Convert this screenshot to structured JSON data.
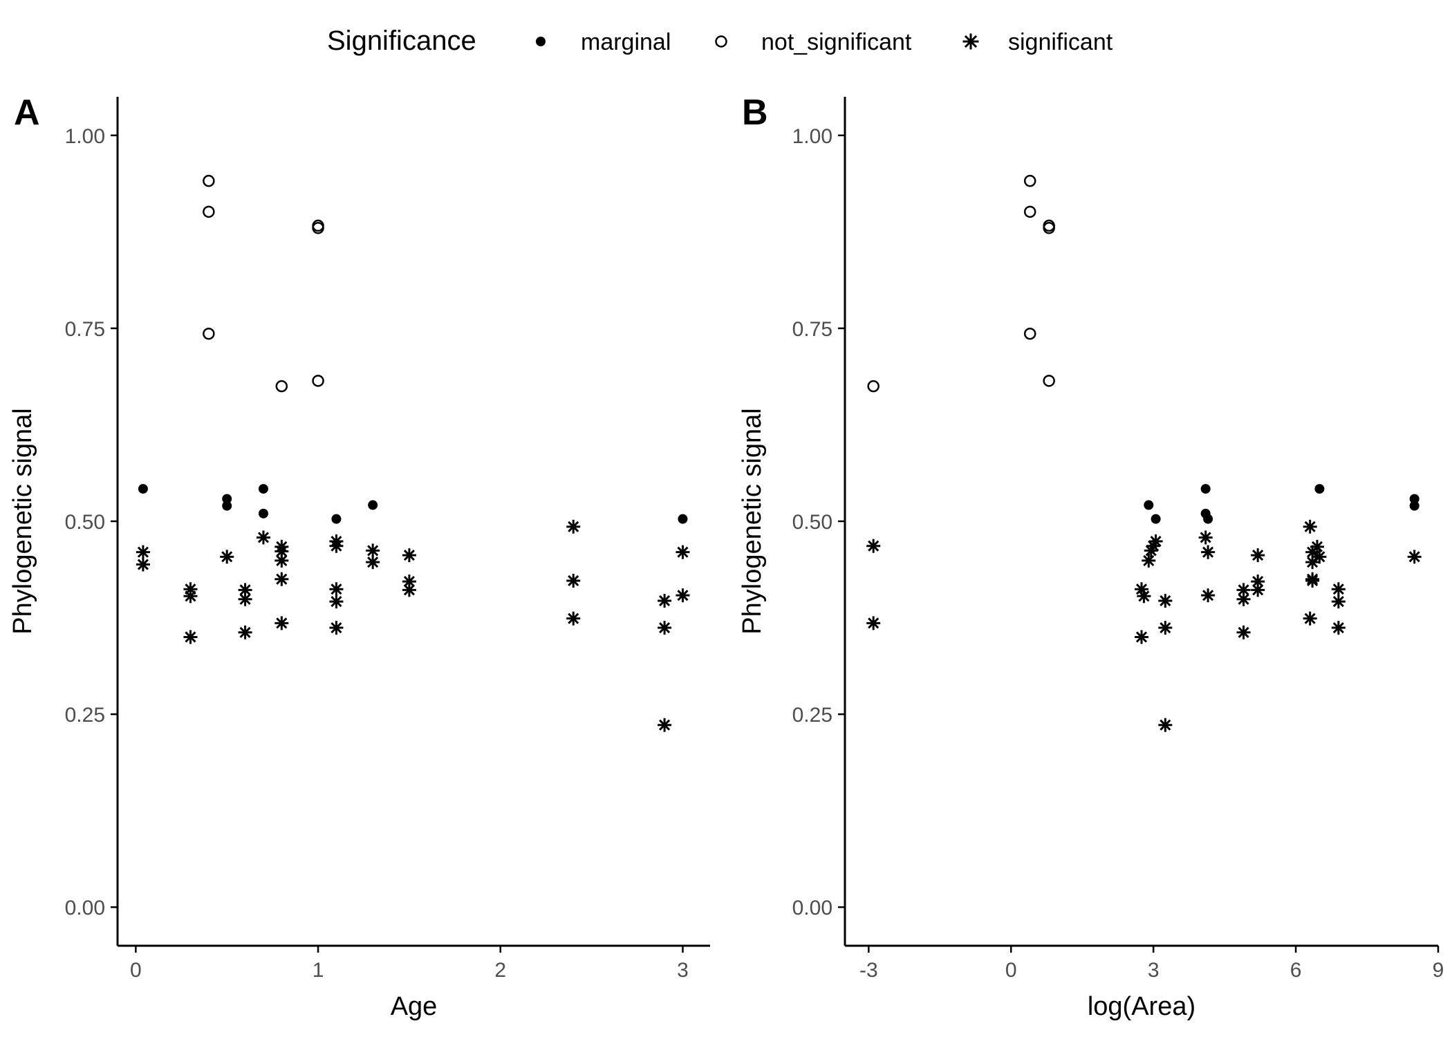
{
  "legend": {
    "title": "Significance",
    "entries": [
      {
        "label": "marginal",
        "shape": "filled-circle"
      },
      {
        "label": "not_significant",
        "shape": "open-circle"
      },
      {
        "label": "significant",
        "shape": "asterisk"
      }
    ],
    "placement": "top"
  },
  "colors": {
    "ink": "#000000",
    "tick_label": "#4d4d4d",
    "background": "#ffffff"
  },
  "chart_data": [
    {
      "type": "scatter",
      "panel_label": "A",
      "xlabel": "Age",
      "ylabel": "Phylogenetic signal",
      "xlim": [
        -0.1,
        3.15
      ],
      "ylim": [
        -0.05,
        1.05
      ],
      "x_ticks": [
        {
          "v": 0,
          "t": "0"
        },
        {
          "v": 1,
          "t": "1"
        },
        {
          "v": 2,
          "t": "2"
        },
        {
          "v": 3,
          "t": "3"
        }
      ],
      "y_ticks": [
        {
          "v": 0,
          "t": "0.00"
        },
        {
          "v": 0.25,
          "t": "0.25"
        },
        {
          "v": 0.5,
          "t": "0.50"
        },
        {
          "v": 0.75,
          "t": "0.75"
        },
        {
          "v": 1,
          "t": "1.00"
        }
      ],
      "grid": false,
      "series": [
        {
          "name": "marginal",
          "points": [
            [
              0.04,
              0.542
            ],
            [
              0.5,
              0.529
            ],
            [
              0.5,
              0.52
            ],
            [
              0.7,
              0.542
            ],
            [
              0.7,
              0.51
            ],
            [
              1.1,
              0.503
            ],
            [
              1.3,
              0.521
            ],
            [
              3.0,
              0.503
            ]
          ]
        },
        {
          "name": "not_significant",
          "points": [
            [
              0.4,
              0.941
            ],
            [
              0.4,
              0.901
            ],
            [
              0.4,
              0.743
            ],
            [
              0.8,
              0.675
            ],
            [
              1.0,
              0.883
            ],
            [
              1.0,
              0.88
            ],
            [
              1.0,
              0.682
            ]
          ]
        },
        {
          "name": "significant",
          "points": [
            [
              0.04,
              0.46
            ],
            [
              0.04,
              0.444
            ],
            [
              0.3,
              0.412
            ],
            [
              0.3,
              0.403
            ],
            [
              0.3,
              0.35
            ],
            [
              0.5,
              0.454
            ],
            [
              0.6,
              0.411
            ],
            [
              0.6,
              0.399
            ],
            [
              0.6,
              0.356
            ],
            [
              0.7,
              0.479
            ],
            [
              0.8,
              0.467
            ],
            [
              0.8,
              0.461
            ],
            [
              0.8,
              0.449
            ],
            [
              0.8,
              0.425
            ],
            [
              0.8,
              0.368
            ],
            [
              1.1,
              0.474
            ],
            [
              1.1,
              0.468
            ],
            [
              1.1,
              0.412
            ],
            [
              1.1,
              0.396
            ],
            [
              1.1,
              0.362
            ],
            [
              1.3,
              0.462
            ],
            [
              1.3,
              0.447
            ],
            [
              1.5,
              0.456
            ],
            [
              1.5,
              0.422
            ],
            [
              1.5,
              0.411
            ],
            [
              2.4,
              0.493
            ],
            [
              2.4,
              0.423
            ],
            [
              2.4,
              0.374
            ],
            [
              2.9,
              0.397
            ],
            [
              2.9,
              0.362
            ],
            [
              2.9,
              0.236
            ],
            [
              3.0,
              0.46
            ],
            [
              3.0,
              0.404
            ]
          ]
        }
      ]
    },
    {
      "type": "scatter",
      "panel_label": "B",
      "xlabel": "log(Area)",
      "ylabel": "Phylogenetic signal",
      "xlim": [
        -3.5,
        9.0
      ],
      "ylim": [
        -0.05,
        1.05
      ],
      "x_ticks": [
        {
          "v": -3,
          "t": "-3"
        },
        {
          "v": 0,
          "t": "0"
        },
        {
          "v": 3,
          "t": "3"
        },
        {
          "v": 6,
          "t": "6"
        },
        {
          "v": 9,
          "t": "9"
        }
      ],
      "y_ticks": [
        {
          "v": 0,
          "t": "0.00"
        },
        {
          "v": 0.25,
          "t": "0.25"
        },
        {
          "v": 0.5,
          "t": "0.50"
        },
        {
          "v": 0.75,
          "t": "0.75"
        },
        {
          "v": 1,
          "t": "1.00"
        }
      ],
      "grid": false,
      "series": [
        {
          "name": "marginal",
          "points": [
            [
              2.9,
              0.521
            ],
            [
              3.05,
              0.503
            ],
            [
              4.1,
              0.542
            ],
            [
              4.1,
              0.51
            ],
            [
              4.15,
              0.503
            ],
            [
              6.5,
              0.542
            ],
            [
              8.5,
              0.529
            ],
            [
              8.5,
              0.52
            ]
          ]
        },
        {
          "name": "not_significant",
          "points": [
            [
              -2.9,
              0.675
            ],
            [
              0.4,
              0.941
            ],
            [
              0.4,
              0.901
            ],
            [
              0.4,
              0.743
            ],
            [
              0.8,
              0.883
            ],
            [
              0.8,
              0.88
            ],
            [
              0.8,
              0.682
            ]
          ]
        },
        {
          "name": "significant",
          "points": [
            [
              -2.9,
              0.468
            ],
            [
              -2.9,
              0.368
            ],
            [
              2.75,
              0.412
            ],
            [
              2.8,
              0.403
            ],
            [
              2.75,
              0.35
            ],
            [
              2.9,
              0.449
            ],
            [
              2.95,
              0.462
            ],
            [
              3.05,
              0.474
            ],
            [
              3.0,
              0.468
            ],
            [
              3.25,
              0.397
            ],
            [
              3.25,
              0.362
            ],
            [
              3.25,
              0.236
            ],
            [
              4.1,
              0.479
            ],
            [
              4.15,
              0.46
            ],
            [
              4.15,
              0.404
            ],
            [
              4.9,
              0.411
            ],
            [
              4.9,
              0.399
            ],
            [
              4.9,
              0.356
            ],
            [
              5.2,
              0.456
            ],
            [
              5.2,
              0.422
            ],
            [
              5.2,
              0.411
            ],
            [
              6.3,
              0.493
            ],
            [
              6.35,
              0.46
            ],
            [
              6.35,
              0.447
            ],
            [
              6.35,
              0.425
            ],
            [
              6.35,
              0.423
            ],
            [
              6.3,
              0.374
            ],
            [
              6.45,
              0.467
            ],
            [
              6.5,
              0.454
            ],
            [
              6.9,
              0.412
            ],
            [
              6.9,
              0.396
            ],
            [
              6.9,
              0.362
            ],
            [
              8.5,
              0.454
            ]
          ]
        }
      ]
    }
  ]
}
